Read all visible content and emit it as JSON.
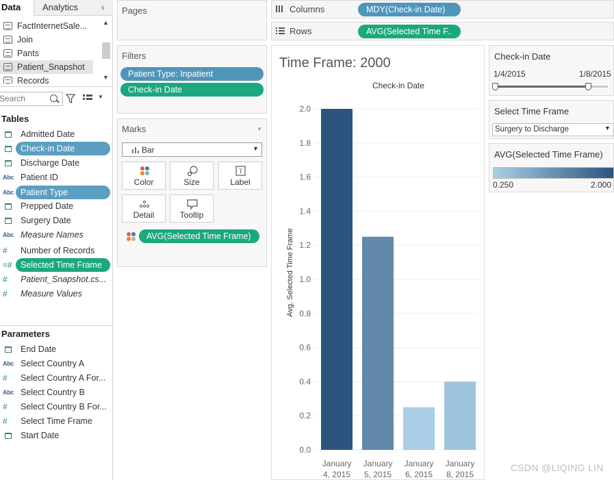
{
  "left_pane": {
    "tabs": [
      {
        "label": "Data"
      },
      {
        "label": "Analytics"
      }
    ],
    "collapse_icon": "chevron-left-icon",
    "data_sources": [
      {
        "label": "FactInternetSale..."
      },
      {
        "label": "Join"
      },
      {
        "label": "Pants"
      },
      {
        "label": "Patient_Snapshot"
      },
      {
        "label": "Records"
      }
    ],
    "search_placeholder": "Search",
    "tables_title": "Tables",
    "tables": [
      {
        "label": "Admitted Date",
        "icon": "calendar-icon"
      },
      {
        "label": "Check-in Date",
        "icon": "calendar-icon"
      },
      {
        "label": "Discharge Date",
        "icon": "calendar-icon"
      },
      {
        "label": "Patient ID",
        "icon": "abc-icon"
      },
      {
        "label": "Patient Type",
        "icon": "abc-icon"
      },
      {
        "label": "Prepped Date",
        "icon": "calendar-icon"
      },
      {
        "label": "Surgery Date",
        "icon": "calendar-icon"
      },
      {
        "label": "Measure Names",
        "icon": "abc-icon"
      },
      {
        "label": "Number of Records",
        "icon": "hash-icon"
      },
      {
        "label": "Selected Time Frame",
        "icon": "calc-hash-icon"
      },
      {
        "label": "Patient_Snapshot.cs...",
        "icon": "hash-icon"
      },
      {
        "label": "Measure Values",
        "icon": "hash-icon"
      }
    ],
    "parameters_title": "Parameters",
    "parameters": [
      {
        "label": "End Date",
        "icon": "calendar-icon"
      },
      {
        "label": "Select Country A",
        "icon": "abc-icon"
      },
      {
        "label": "Select Country A For...",
        "icon": "hash-icon"
      },
      {
        "label": "Select Country B",
        "icon": "abc-icon"
      },
      {
        "label": "Select Country B For...",
        "icon": "hash-icon"
      },
      {
        "label": "Select Time Frame",
        "icon": "hash-icon"
      },
      {
        "label": "Start Date",
        "icon": "calendar-icon"
      }
    ]
  },
  "pages": {
    "title": "Pages"
  },
  "filters": {
    "title": "Filters",
    "pills": [
      {
        "label": "Patient Type: Inpatient"
      },
      {
        "label": "Check-in Date"
      }
    ]
  },
  "marks": {
    "title": "Marks",
    "mark_type": "Bar",
    "buttons": [
      {
        "label": "Color"
      },
      {
        "label": "Size"
      },
      {
        "label": "Label"
      },
      {
        "label": "Detail"
      },
      {
        "label": "Tooltip"
      }
    ],
    "field_pill": "AVG(Selected Time Frame)"
  },
  "columns_shelf": {
    "label": "Columns",
    "pill": "MDY(Check-in Date)"
  },
  "rows_shelf": {
    "label": "Rows",
    "pill": "AVG(Selected Time F.."
  },
  "viz": {
    "title": "Time Frame: 2000"
  },
  "chart_data": {
    "type": "bar",
    "title": "Check-in Date",
    "ylabel": "Avg. Selected Time Frame",
    "categories": [
      [
        "January",
        "4, 2015"
      ],
      [
        "January",
        "5, 2015"
      ],
      [
        "January",
        "6, 2015"
      ],
      [
        "January",
        "8, 2015"
      ]
    ],
    "values": [
      2.0,
      1.25,
      0.25,
      0.4
    ],
    "ylim": [
      0,
      2.0
    ],
    "yticks": [
      "0.0",
      "0.2",
      "0.4",
      "0.6",
      "0.8",
      "1.0",
      "1.2",
      "1.4",
      "1.6",
      "1.8",
      "2.0"
    ],
    "color_range": [
      "#a9cee6",
      "#2c547f"
    ],
    "grid": true
  },
  "right_pane": {
    "date_filter": {
      "title": "Check-in Date",
      "min": "1/4/2015",
      "max": "1/8/2015",
      "selected_fraction": 0.9
    },
    "time_frame": {
      "title": "Select Time Frame",
      "value": "Surgery to Discharge"
    },
    "color_legend": {
      "title": "AVG(Selected Time Frame)",
      "min": "0.250",
      "max": "2.000"
    }
  },
  "watermark": "CSDN @LIQING LIN",
  "colors": {
    "pill_blue": "#4f95ba",
    "pill_green": "#1ba87e"
  }
}
